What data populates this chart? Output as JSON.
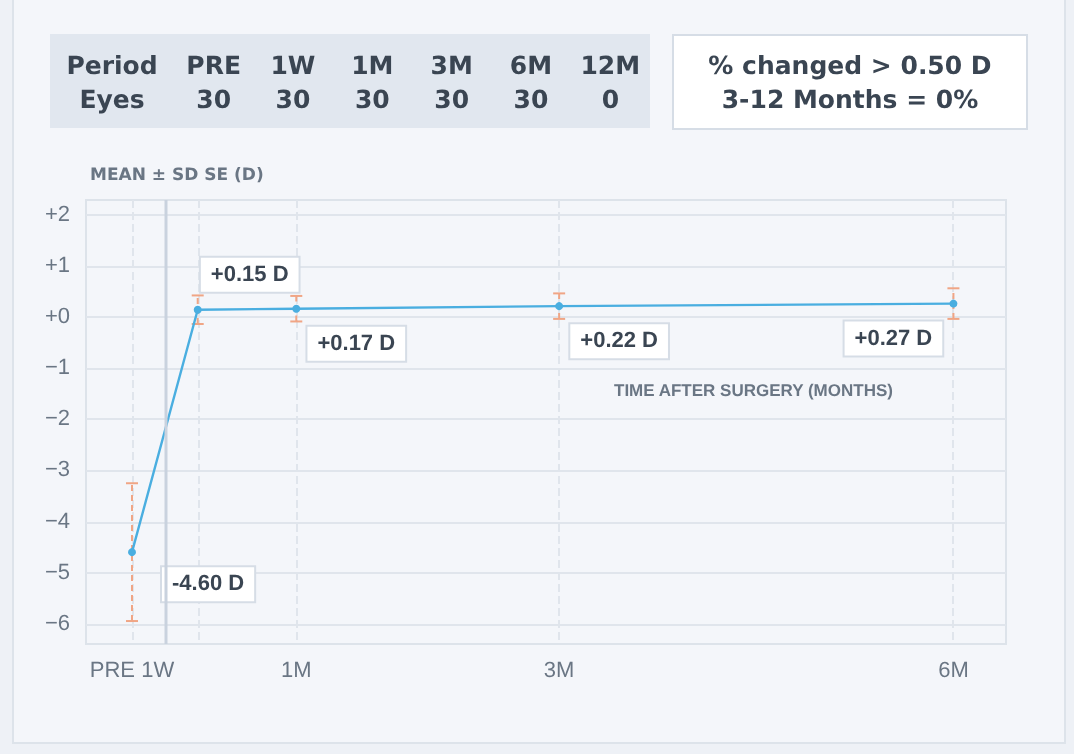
{
  "chart_data": {
    "type": "line",
    "xlabel": "TIME AFTER SURGERY (MONTHS)",
    "ylabel": "MEAN ± SD SE (D)",
    "x": [
      -0.25,
      0.25,
      1,
      3,
      6
    ],
    "series": [
      {
        "color": "#4aaee0",
        "values": [
          -4.6,
          0.15,
          0.17,
          0.22,
          0.27
        ],
        "errors": [
          1.35,
          0.28,
          0.25,
          0.25,
          0.3
        ],
        "value_labels": [
          "-4.60 D",
          "+0.15 D",
          "+0.17 D",
          "+0.22 D",
          "+0.27 D"
        ]
      }
    ],
    "xlim": [
      -0.6,
      6.4
    ],
    "xticks": [
      {
        "value": -0.25,
        "label": "PRE 1W"
      },
      {
        "value": 0.25,
        "label": null
      },
      {
        "value": 1,
        "label": "1M"
      },
      {
        "value": 3,
        "label": "3M"
      },
      {
        "value": 6,
        "label": "6M"
      }
    ],
    "ylim": [
      -6.4,
      2.3
    ],
    "yticks": [
      {
        "value": -6,
        "label": "−6"
      },
      {
        "value": -5,
        "label": "−5"
      },
      {
        "value": -4,
        "label": "−4"
      },
      {
        "value": -3,
        "label": "−3"
      },
      {
        "value": -2,
        "label": "−2"
      },
      {
        "value": -1,
        "label": "−1"
      },
      {
        "value": 0,
        "label": "+0"
      },
      {
        "value": 1,
        "label": "+1"
      },
      {
        "value": 2,
        "label": "+2"
      }
    ],
    "ref_lines": [
      {
        "axis": "x",
        "value": 0,
        "label": null,
        "color": "#c9d2de",
        "line_style": "solid"
      }
    ],
    "grid": true,
    "marker": "circle",
    "line_style": "solid",
    "annotations": [
      "Period",
      "PRE",
      "1W",
      "1M",
      "3M",
      "6M",
      "12M",
      "Eyes",
      "30",
      "30",
      "30",
      "30",
      "30",
      "0",
      "% changed > 0.50 D",
      "3-12 Months = 0%"
    ]
  }
}
